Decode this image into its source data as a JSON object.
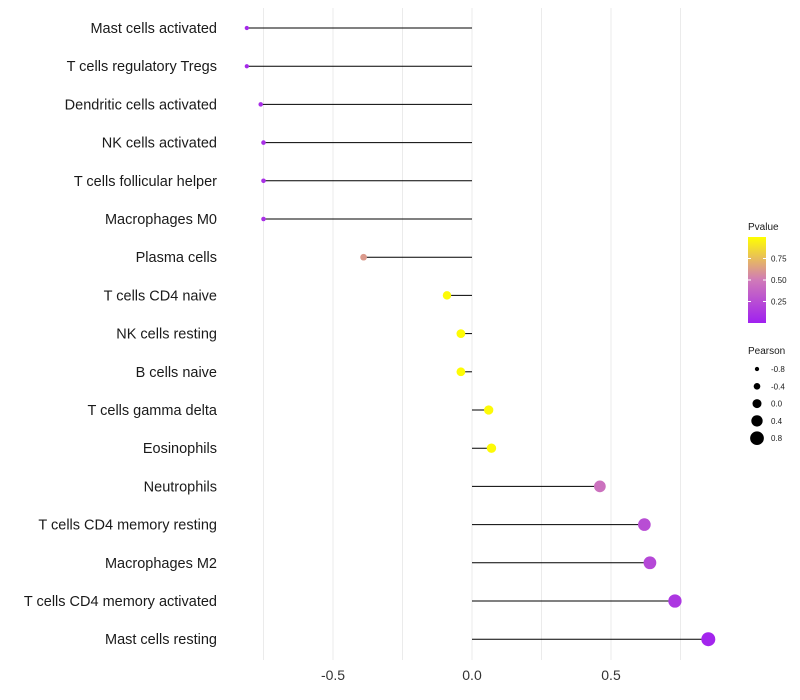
{
  "chart_data": {
    "type": "lollipop",
    "title": "",
    "xlabel": "",
    "ylabel": "",
    "xlim": [
      -0.82,
      0.86
    ],
    "x_ticks": [
      -0.5,
      0.0,
      0.5
    ],
    "x_tick_labels": [
      "-0.5",
      "0.0",
      "0.5"
    ],
    "grid": true,
    "categories": [
      "Mast cells activated",
      "T cells regulatory  Tregs",
      "Dendritic cells activated",
      "NK cells activated",
      "T cells follicular helper",
      "Macrophages M0",
      "Plasma cells",
      "T cells CD4 naive",
      "NK cells resting",
      "B cells naive",
      "T cells gamma delta",
      "Eosinophils",
      "Neutrophils",
      "T cells CD4 memory resting",
      "Macrophages M2",
      "T cells CD4 memory activated",
      "Mast cells resting"
    ],
    "pearson": [
      -0.81,
      -0.81,
      -0.76,
      -0.75,
      -0.75,
      -0.75,
      -0.39,
      -0.09,
      -0.04,
      -0.04,
      0.06,
      0.07,
      0.46,
      0.62,
      0.64,
      0.73,
      0.85
    ],
    "pvalue": [
      0.05,
      0.05,
      0.08,
      0.09,
      0.09,
      0.09,
      0.62,
      0.98,
      0.99,
      0.99,
      0.98,
      0.98,
      0.45,
      0.25,
      0.22,
      0.13,
      0.03
    ],
    "colors": {
      "line": "#000000",
      "grid": "#ebebeb",
      "pvalue_low": "#a020f0",
      "pvalue_mid": "#d07ab8",
      "pvalue_high": "#ffff00"
    },
    "legend": {
      "position": "right",
      "pvalue": {
        "title": "Pvalue",
        "ticks": [
          0.25,
          0.5,
          0.75
        ],
        "tick_labels": [
          "0.25",
          "0.50",
          "0.75"
        ]
      },
      "pearson": {
        "title": "Pearson",
        "values": [
          -0.8,
          -0.4,
          0.0,
          0.4,
          0.8
        ],
        "labels": [
          "-0.8",
          "-0.4",
          "0.0",
          "0.4",
          "0.8"
        ]
      }
    }
  }
}
